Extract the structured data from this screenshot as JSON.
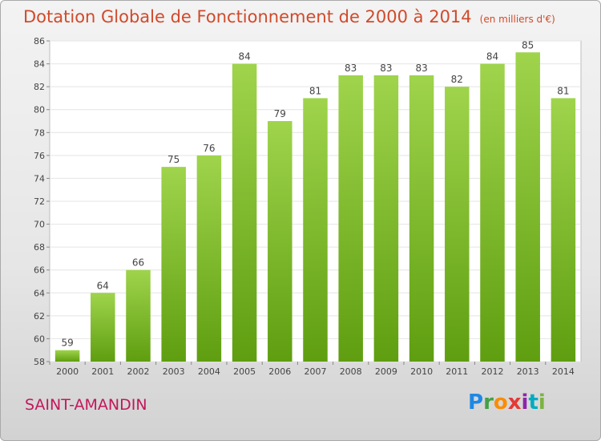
{
  "title": "Dotation Globale de Fonctionnement de 2000 à 2014",
  "subtitle": "(en milliers d'€)",
  "commune": "SAINT-AMANDIN",
  "logo": {
    "letters": [
      "P",
      "r",
      "o",
      "x",
      "i",
      "t",
      "i"
    ]
  },
  "colors": {
    "title": "#d04a2b",
    "commune": "#c2185b",
    "bar_top": "#9fd44c",
    "bar_bottom": "#5f9e10"
  },
  "chart_data": {
    "type": "bar",
    "title": "Dotation Globale de Fonctionnement de 2000 à 2014",
    "categories": [
      "2000",
      "2001",
      "2002",
      "2003",
      "2004",
      "2005",
      "2006",
      "2007",
      "2008",
      "2009",
      "2010",
      "2011",
      "2012",
      "2013",
      "2014"
    ],
    "values": [
      59,
      64,
      66,
      75,
      76,
      84,
      79,
      81,
      83,
      83,
      83,
      82,
      84,
      85,
      81
    ],
    "ylim": [
      58,
      86
    ],
    "yticks": [
      58,
      60,
      62,
      64,
      66,
      68,
      70,
      72,
      74,
      76,
      78,
      80,
      82,
      84,
      86
    ],
    "grid": true,
    "data_labels": true
  }
}
